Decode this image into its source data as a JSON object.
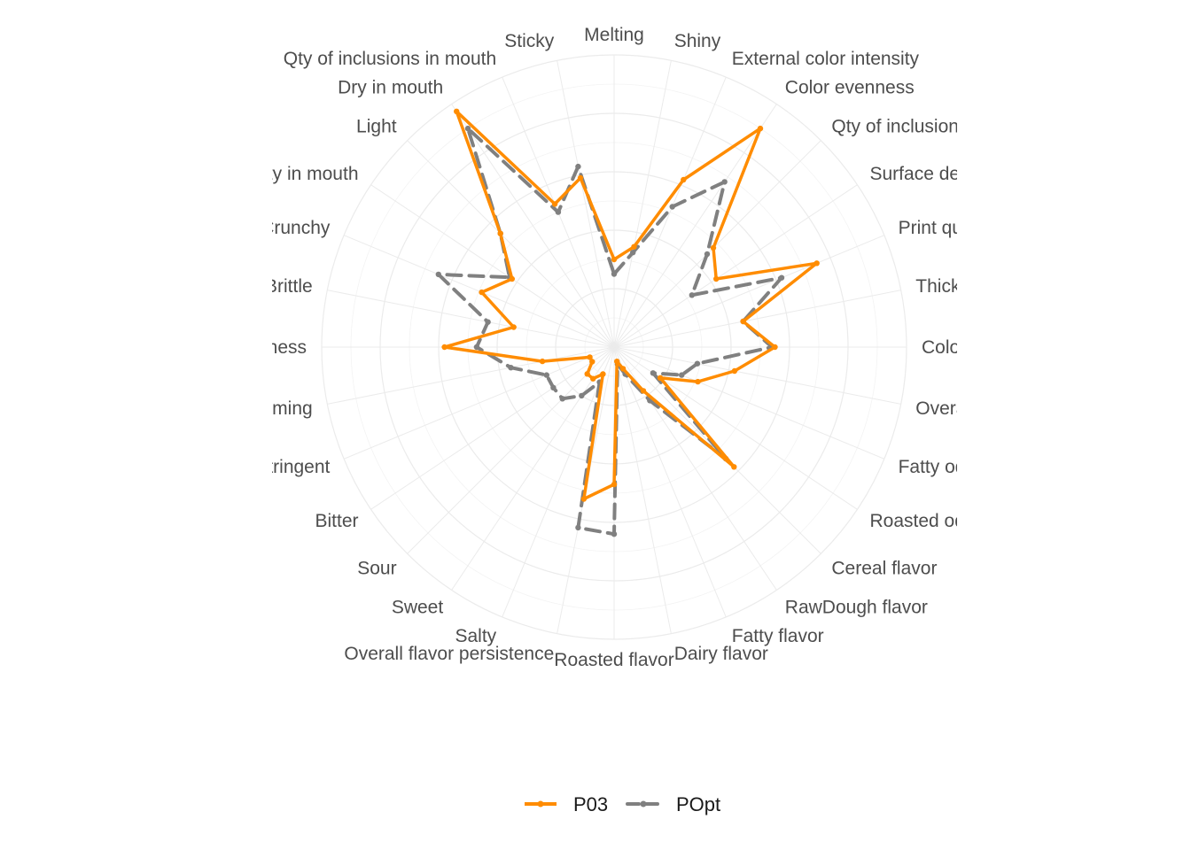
{
  "chart_data": {
    "type": "radar",
    "axes": [
      "Melting",
      "Shiny",
      "External color intensity",
      "Color evenness",
      "Qty of inclusions",
      "Surface defects",
      "Print quality",
      "Thickness",
      "Color contrast",
      "Overall odor intensity",
      "Fatty odor",
      "Roasted odor",
      "Cereal flavor",
      "RawDough flavor",
      "Fatty flavor",
      "Dairy flavor",
      "Roasted flavor",
      "Overall flavor persistence",
      "Salty",
      "Sweet",
      "Sour",
      "Bitter",
      "Astringent",
      "Warming",
      "Initial hardness",
      "Brittle",
      "Crunchy",
      "Fatty in mouth",
      "Light",
      "Dry in mouth",
      "Qty of inclusions in mouth",
      "Sticky"
    ],
    "rlim": [
      0,
      10
    ],
    "grid_rings": [
      2,
      4,
      6,
      8,
      10
    ],
    "grid": true,
    "legend_position": "bottom",
    "series": [
      {
        "name": "P03",
        "color": "#ff8c00",
        "line_style": "solid",
        "values": [
          3.0,
          3.5,
          6.2,
          9.0,
          4.8,
          4.2,
          7.5,
          4.5,
          5.5,
          4.2,
          3.1,
          1.9,
          5.8,
          1.8,
          0.8,
          0.5,
          4.7,
          5.3,
          1.0,
          1.3,
          1.3,
          0.9,
          0.9,
          2.5,
          5.8,
          3.5,
          4.9,
          4.2,
          5.5,
          9.7,
          5.3,
          5.9
        ]
      },
      {
        "name": "POpt",
        "color": "#808080",
        "line_style": "dashed",
        "values": [
          2.5,
          3.3,
          5.2,
          6.8,
          4.5,
          3.2,
          6.2,
          4.5,
          5.4,
          2.9,
          2.5,
          1.6,
          5.4,
          2.2,
          1.0,
          0.6,
          6.4,
          6.3,
          1.3,
          2.0,
          2.5,
          2.5,
          2.5,
          3.6,
          4.7,
          4.4,
          6.5,
          4.3,
          5.5,
          9.0,
          5.0,
          6.3
        ]
      }
    ]
  }
}
